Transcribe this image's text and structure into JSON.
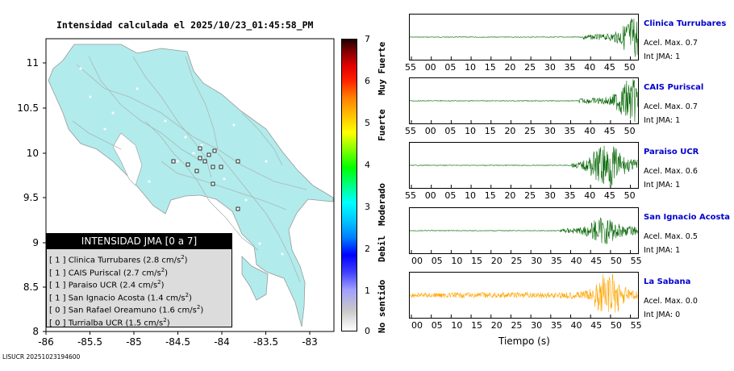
{
  "map": {
    "title": "Intensidad calculada el 2025/10/23_01:45:58_PM",
    "footer_id": "LISUCR 20251023194600",
    "x_ticks": [
      "-86",
      "-85.5",
      "-85",
      "-84.5",
      "-84",
      "-83.5",
      "-83"
    ],
    "y_ticks": [
      "11",
      "10.5",
      "10",
      "9.5",
      "9",
      "8.5",
      "8"
    ],
    "land_color": "#b2ebeb",
    "legend": {
      "header": "INTENSIDAD JMA [0 a 7]",
      "rows": [
        {
          "int": "[ 1 ]",
          "text": "Clinica Turrubares (2.8 cm/s",
          "sup": "2",
          "close": ")"
        },
        {
          "int": "[ 1 ]",
          "text": "CAIS Puriscal (2.7 cm/s",
          "sup": "2",
          "close": ")"
        },
        {
          "int": "[ 1 ]",
          "text": "Paraiso UCR (2.4 cm/s",
          "sup": "2",
          "close": ")"
        },
        {
          "int": "[ 1 ]",
          "text": "San Ignacio Acosta (1.4 cm/s",
          "sup": "2",
          "close": ")"
        },
        {
          "int": "[ 0 ]",
          "text": "San Rafael Oreamuno (1.6 cm/s",
          "sup": "2",
          "close": ")"
        },
        {
          "int": "[ 0 ]",
          "text": "Turrialba UCR (1.5 cm/s",
          "sup": "2",
          "close": ")"
        }
      ]
    }
  },
  "colorbar": {
    "ticks": [
      "7",
      "6",
      "5",
      "4",
      "3",
      "2",
      "1",
      "0"
    ],
    "labels": [
      "Muy Fuerte",
      "Fuerte",
      "Moderado",
      "Debil",
      "No sentido"
    ]
  },
  "waveforms": {
    "time_label": "Tiempo (s)",
    "trace_color_green": "#006400",
    "trace_color_orange": "#ffa500",
    "panels": [
      {
        "station": "Clinica Turrubares",
        "acc": "Acel. Max. 0.7",
        "int": "Int JMA: 1",
        "ticks": [
          "55",
          "00",
          "05",
          "10",
          "15",
          "20",
          "25",
          "30",
          "35",
          "40",
          "45",
          "50"
        ],
        "color": "green"
      },
      {
        "station": "CAIS Puriscal",
        "acc": "Acel. Max. 0.7",
        "int": "Int JMA: 1",
        "ticks": [
          "55",
          "00",
          "05",
          "10",
          "15",
          "20",
          "25",
          "30",
          "35",
          "40",
          "45",
          "50"
        ],
        "color": "green"
      },
      {
        "station": "Paraiso UCR",
        "acc": "Acel. Max. 0.6",
        "int": "Int JMA: 1",
        "ticks": [
          "55",
          "00",
          "05",
          "10",
          "15",
          "20",
          "25",
          "30",
          "35",
          "40",
          "45",
          "50"
        ],
        "color": "green"
      },
      {
        "station": "San Ignacio Acosta",
        "acc": "Acel. Max. 0.5",
        "int": "Int JMA: 1",
        "ticks": [
          "00",
          "05",
          "10",
          "15",
          "20",
          "25",
          "30",
          "35",
          "40",
          "45",
          "50",
          "55"
        ],
        "color": "green"
      },
      {
        "station": "La Sabana",
        "acc": "Acel. Max. 0.0",
        "int": "Int JMA: 0",
        "ticks": [
          "00",
          "05",
          "10",
          "15",
          "20",
          "25",
          "30",
          "35",
          "40",
          "45",
          "50",
          "55"
        ],
        "color": "orange"
      }
    ]
  }
}
